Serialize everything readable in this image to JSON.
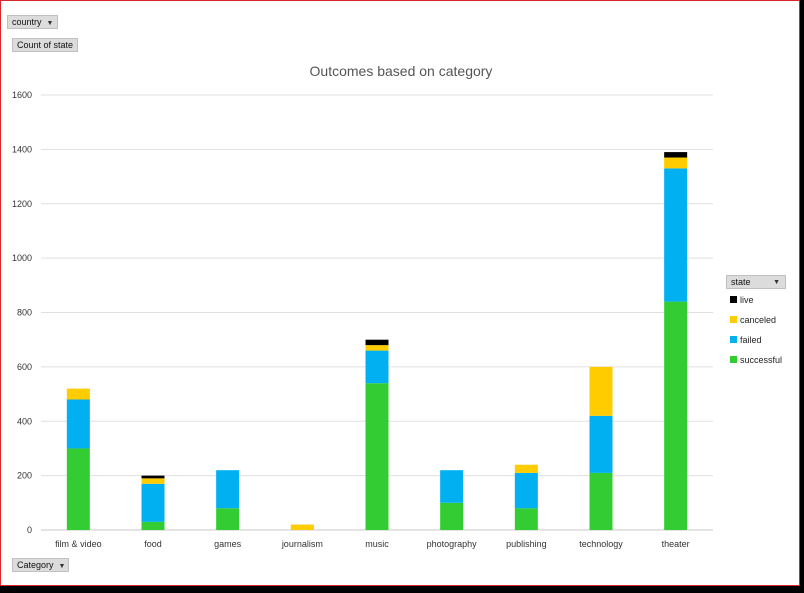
{
  "filters": {
    "country_label": "country",
    "value_label": "Count of state",
    "axis_label": "Category",
    "legend_label": "state"
  },
  "chart_data": {
    "type": "bar",
    "stacked": true,
    "title": "Outcomes based on category",
    "xlabel": "",
    "ylabel": "",
    "ylim": [
      0,
      1600
    ],
    "yticks": [
      0,
      200,
      400,
      600,
      800,
      1000,
      1200,
      1400,
      1600
    ],
    "grid": true,
    "legend_position": "right",
    "categories": [
      "film & video",
      "food",
      "games",
      "journalism",
      "music",
      "photography",
      "publishing",
      "technology",
      "theater"
    ],
    "series": [
      {
        "name": "successful",
        "color": "#33cc33",
        "values": [
          300,
          30,
          80,
          0,
          540,
          100,
          80,
          210,
          840
        ]
      },
      {
        "name": "failed",
        "color": "#00b0f0",
        "values": [
          180,
          140,
          140,
          0,
          120,
          120,
          130,
          210,
          490
        ]
      },
      {
        "name": "canceled",
        "color": "#ffcc00",
        "values": [
          40,
          20,
          0,
          20,
          20,
          0,
          30,
          180,
          40
        ]
      },
      {
        "name": "live",
        "color": "#000000",
        "values": [
          0,
          10,
          0,
          0,
          20,
          0,
          0,
          0,
          20
        ]
      }
    ]
  }
}
